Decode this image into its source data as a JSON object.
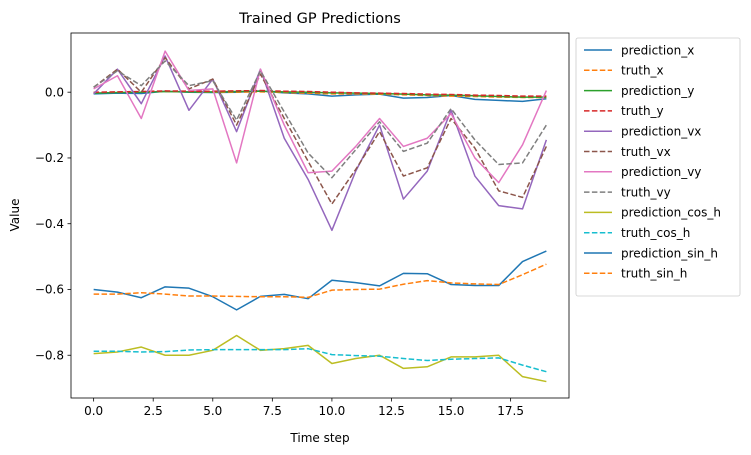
{
  "chart_data": {
    "type": "line",
    "title": "Trained GP Predictions",
    "xlabel": "Time step",
    "ylabel": "Value",
    "xlim": [
      -0.95,
      19.95
    ],
    "ylim": [
      -0.93,
      0.18
    ],
    "xticks": [
      0,
      2.5,
      5,
      7.5,
      10,
      12.5,
      15,
      17.5
    ],
    "xtick_labels": [
      "0.0",
      "2.5",
      "5.0",
      "7.5",
      "10.0",
      "12.5",
      "15.0",
      "17.5"
    ],
    "yticks": [
      0,
      -0.2,
      -0.4,
      -0.6,
      -0.8
    ],
    "ytick_labels": [
      "0.0",
      "−0.2",
      "−0.4",
      "−0.6",
      "−0.8"
    ],
    "grid": false,
    "legend_position": "outside right, upper",
    "x": [
      0,
      1,
      2,
      3,
      4,
      5,
      6,
      7,
      8,
      9,
      10,
      11,
      12,
      13,
      14,
      15,
      16,
      17,
      18,
      19
    ],
    "series": [
      {
        "name": "prediction_x",
        "color": "#1f77b4",
        "dash": "solid",
        "values": [
          -0.005,
          -0.003,
          -0.004,
          0.003,
          0.0,
          -0.001,
          0.0,
          0.004,
          -0.002,
          -0.005,
          -0.012,
          -0.008,
          -0.006,
          -0.018,
          -0.016,
          -0.01,
          -0.022,
          -0.025,
          -0.028,
          -0.02
        ]
      },
      {
        "name": "truth_x",
        "color": "#ff7f0e",
        "dash": "dashed",
        "values": [
          -0.002,
          0.0,
          0.001,
          0.002,
          0.001,
          0.0,
          0.0,
          0.001,
          -0.001,
          -0.003,
          -0.005,
          -0.005,
          -0.006,
          -0.008,
          -0.01,
          -0.012,
          -0.013,
          -0.015,
          -0.016,
          -0.016
        ]
      },
      {
        "name": "prediction_y",
        "color": "#2ca02c",
        "dash": "solid",
        "values": [
          -0.003,
          -0.001,
          0.0,
          0.002,
          0.001,
          0.001,
          0.002,
          0.003,
          0.001,
          0.0,
          -0.002,
          -0.003,
          -0.004,
          -0.006,
          -0.008,
          -0.009,
          -0.011,
          -0.013,
          -0.015,
          -0.015
        ]
      },
      {
        "name": "truth_y",
        "color": "#d62728",
        "dash": "dashed",
        "values": [
          0.0,
          0.001,
          0.002,
          0.004,
          0.003,
          0.003,
          0.004,
          0.005,
          0.003,
          0.002,
          0.0,
          -0.002,
          -0.003,
          -0.004,
          -0.006,
          -0.007,
          -0.009,
          -0.01,
          -0.012,
          -0.012
        ]
      },
      {
        "name": "prediction_vx",
        "color": "#9467bd",
        "dash": "solid",
        "values": [
          -0.005,
          0.07,
          -0.035,
          0.11,
          -0.055,
          0.04,
          -0.12,
          0.07,
          -0.14,
          -0.265,
          -0.42,
          -0.24,
          -0.1,
          -0.325,
          -0.24,
          -0.055,
          -0.255,
          -0.345,
          -0.355,
          -0.145
        ]
      },
      {
        "name": "truth_vx",
        "color": "#8c564b",
        "dash": "dashed",
        "values": [
          0.015,
          0.07,
          0.0,
          0.105,
          0.01,
          0.04,
          -0.1,
          0.055,
          -0.08,
          -0.21,
          -0.34,
          -0.235,
          -0.12,
          -0.255,
          -0.23,
          -0.08,
          -0.17,
          -0.3,
          -0.32,
          -0.165
        ]
      },
      {
        "name": "prediction_vy",
        "color": "#e377c2",
        "dash": "solid",
        "values": [
          0.01,
          0.05,
          -0.08,
          0.125,
          0.005,
          0.01,
          -0.215,
          0.07,
          -0.1,
          -0.245,
          -0.24,
          -0.165,
          -0.08,
          -0.165,
          -0.14,
          -0.065,
          -0.2,
          -0.275,
          -0.16,
          0.005
        ]
      },
      {
        "name": "truth_vy",
        "color": "#7f7f7f",
        "dash": "dashed",
        "values": [
          0.015,
          0.065,
          0.02,
          0.095,
          0.02,
          0.035,
          -0.085,
          0.065,
          -0.06,
          -0.185,
          -0.26,
          -0.175,
          -0.09,
          -0.18,
          -0.155,
          -0.05,
          -0.145,
          -0.22,
          -0.215,
          -0.1
        ]
      },
      {
        "name": "prediction_cos_h",
        "color": "#bcbd22",
        "dash": "solid",
        "values": [
          -0.795,
          -0.79,
          -0.775,
          -0.8,
          -0.8,
          -0.785,
          -0.74,
          -0.785,
          -0.78,
          -0.77,
          -0.825,
          -0.81,
          -0.8,
          -0.84,
          -0.835,
          -0.805,
          -0.805,
          -0.8,
          -0.865,
          -0.88
        ]
      },
      {
        "name": "truth_cos_h",
        "color": "#17becf",
        "dash": "dashed",
        "values": [
          -0.788,
          -0.788,
          -0.79,
          -0.789,
          -0.784,
          -0.783,
          -0.783,
          -0.783,
          -0.783,
          -0.78,
          -0.798,
          -0.801,
          -0.803,
          -0.81,
          -0.816,
          -0.812,
          -0.81,
          -0.808,
          -0.83,
          -0.85
        ]
      },
      {
        "name": "prediction_sin_h",
        "color": "#1f77b4",
        "dash": "solid",
        "values": [
          -0.6,
          -0.608,
          -0.625,
          -0.592,
          -0.596,
          -0.622,
          -0.662,
          -0.621,
          -0.615,
          -0.628,
          -0.572,
          -0.579,
          -0.589,
          -0.551,
          -0.552,
          -0.585,
          -0.588,
          -0.588,
          -0.515,
          -0.483
        ]
      },
      {
        "name": "truth_sin_h",
        "color": "#ff7f0e",
        "dash": "dashed",
        "values": [
          -0.614,
          -0.614,
          -0.61,
          -0.614,
          -0.62,
          -0.62,
          -0.621,
          -0.622,
          -0.622,
          -0.624,
          -0.602,
          -0.6,
          -0.599,
          -0.584,
          -0.573,
          -0.58,
          -0.583,
          -0.585,
          -0.555,
          -0.523
        ]
      }
    ]
  }
}
